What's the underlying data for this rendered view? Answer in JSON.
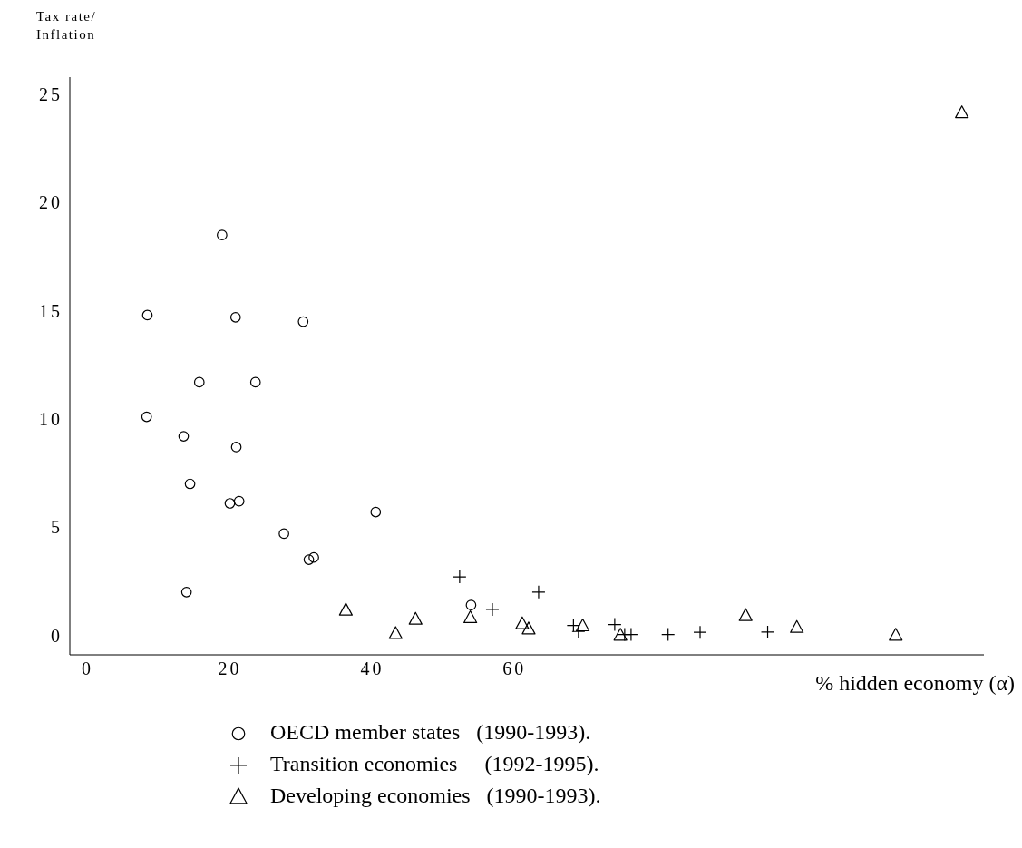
{
  "chart_data": {
    "type": "scatter",
    "ylabel": "Tax rate/ Inflation",
    "xlabel": "% hidden economy (α)",
    "xlim": [
      -2.5,
      126
    ],
    "xticks": [
      0,
      20,
      40,
      60
    ],
    "ylim": [
      -0.9,
      25.8
    ],
    "yticks": [
      0,
      5,
      10,
      15,
      20,
      25
    ],
    "grid": false,
    "legend": "bottom",
    "series": [
      {
        "name": "OECD member states   (1990-1993).",
        "color": "#000000",
        "marker": "circle",
        "x": [
          18.9,
          8.4,
          20.8,
          30.3,
          15.7,
          23.6,
          8.3,
          13.5,
          20.9,
          14.4,
          20.0,
          21.3,
          40.5,
          27.6,
          31.1,
          31.8,
          13.9,
          53.9
        ],
        "values": [
          18.5,
          14.8,
          14.7,
          14.5,
          11.7,
          11.7,
          10.1,
          9.2,
          8.7,
          7.0,
          6.1,
          6.2,
          5.7,
          4.7,
          3.5,
          3.6,
          2.0,
          1.4
        ]
      },
      {
        "name": "Transition economies     (1992-1995).",
        "color": "#000000",
        "marker": "cross",
        "x": [
          52.3,
          63.4,
          56.9,
          68.3,
          69.0,
          74.1,
          75.5,
          76.4,
          81.6,
          86.1,
          95.6
        ],
        "values": [
          2.7,
          2.0,
          1.2,
          0.46,
          0.18,
          0.5,
          0.04,
          0.04,
          0.04,
          0.14,
          0.15
        ]
      },
      {
        "name": "Developing economies   (1990-1993).",
        "color": "#000000",
        "marker": "triangle",
        "x": [
          36.3,
          46.1,
          43.3,
          53.8,
          61.1,
          62.0,
          69.6,
          74.9,
          92.5,
          99.7,
          113.6,
          122.9
        ],
        "values": [
          1.16,
          0.74,
          0.08,
          0.81,
          0.53,
          0.29,
          0.43,
          0.0,
          0.91,
          0.36,
          0.0,
          24.15
        ]
      }
    ]
  }
}
